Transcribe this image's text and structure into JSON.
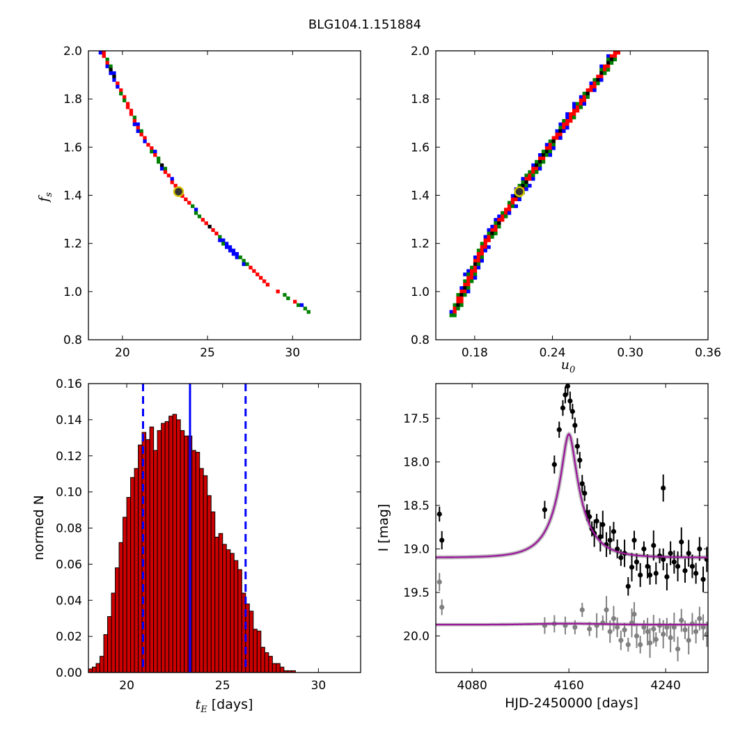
{
  "figure_title": "BLG104.1.151884",
  "chart_data": [
    {
      "type": "heatmap",
      "panel": "top-left",
      "xlabel": "",
      "ylabel_symbol": "f",
      "ylabel_sub": "s",
      "xlim": [
        18,
        34
      ],
      "ylim": [
        0.8,
        2.0
      ],
      "xticks": [
        20,
        25,
        30
      ],
      "xtick_labels": [
        "20",
        "25",
        "30"
      ],
      "yticks": [
        0.8,
        1.0,
        1.2,
        1.4,
        1.6,
        1.8,
        2.0
      ],
      "ytick_labels": [
        "0.8",
        "1.0",
        "1.2",
        "1.4",
        "1.6",
        "1.8",
        "2.0"
      ],
      "best_fit": {
        "x": 23.3,
        "y": 1.415
      },
      "ridge": [
        [
          18.8,
          2.0
        ],
        [
          21.0,
          1.67
        ],
        [
          23.3,
          1.415
        ],
        [
          26.0,
          1.2
        ],
        [
          28.5,
          1.03
        ],
        [
          30.3,
          0.95
        ],
        [
          31.3,
          0.9
        ]
      ],
      "levels": [
        {
          "name": "3sigma",
          "color": "#0000ff",
          "half_width": 0.11
        },
        {
          "name": "2sigma",
          "color": "#008000",
          "half_width": 0.078
        },
        {
          "name": "1sigma",
          "color": "#ff0000",
          "half_width": 0.05
        },
        {
          "name": "best",
          "color": "#000000",
          "half_width": 0.018
        }
      ]
    },
    {
      "type": "heatmap",
      "panel": "top-right",
      "xlabel_symbol": "u",
      "xlabel_sub": "0",
      "xlim": [
        0.15,
        0.36
      ],
      "ylim": [
        0.8,
        2.0
      ],
      "xticks": [
        0.18,
        0.24,
        0.3,
        0.36
      ],
      "xtick_labels": [
        "0.18",
        "0.24",
        "0.30",
        "0.36"
      ],
      "yticks": [
        0.8,
        1.0,
        1.2,
        1.4,
        1.6,
        1.8,
        2.0
      ],
      "ytick_labels": [
        "0.8",
        "1.0",
        "1.2",
        "1.4",
        "1.6",
        "1.8",
        "2.0"
      ],
      "best_fit": {
        "x": 0.2145,
        "y": 1.415
      },
      "ridge": [
        [
          0.162,
          0.89
        ],
        [
          0.188,
          1.2
        ],
        [
          0.2145,
          1.415
        ],
        [
          0.24,
          1.62
        ],
        [
          0.268,
          1.83
        ],
        [
          0.29,
          2.0
        ]
      ],
      "levels": [
        {
          "name": "3sigma",
          "color": "#0000ff",
          "half_width": 0.044
        },
        {
          "name": "2sigma",
          "color": "#008000",
          "half_width": 0.032
        },
        {
          "name": "1sigma",
          "color": "#ff0000",
          "half_width": 0.021
        },
        {
          "name": "best",
          "color": "#000000",
          "half_width": 0.008
        }
      ]
    },
    {
      "type": "bar",
      "panel": "bottom-left",
      "xlabel_symbol": "t",
      "xlabel_sub": "E",
      "xlabel_text": "[days]",
      "ylabel": "normed N",
      "xlim": [
        18,
        32.2
      ],
      "ylim": [
        0,
        0.16
      ],
      "xticks": [
        20,
        25,
        30
      ],
      "xtick_labels": [
        "20",
        "25",
        "30"
      ],
      "yticks": [
        0,
        0.02,
        0.04,
        0.06,
        0.08,
        0.1,
        0.12,
        0.14,
        0.16
      ],
      "ytick_labels": [
        "0.00",
        "0.02",
        "0.04",
        "0.06",
        "0.08",
        "0.10",
        "0.12",
        "0.14",
        "0.16"
      ],
      "bin_start": 18.0,
      "bin_width": 0.2,
      "values": [
        0.002,
        0.003,
        0.005,
        0.009,
        0.021,
        0.031,
        0.044,
        0.058,
        0.072,
        0.086,
        0.097,
        0.108,
        0.113,
        0.126,
        0.133,
        0.129,
        0.136,
        0.123,
        0.134,
        0.138,
        0.139,
        0.142,
        0.143,
        0.14,
        0.134,
        0.131,
        0.131,
        0.123,
        0.122,
        0.113,
        0.109,
        0.098,
        0.089,
        0.075,
        0.077,
        0.071,
        0.068,
        0.066,
        0.062,
        0.057,
        0.044,
        0.038,
        0.034,
        0.024,
        0.023,
        0.014,
        0.011,
        0.009,
        0.005,
        0.005,
        0.003,
        0.001,
        0.001,
        0.001,
        0.0,
        0.0,
        0.0,
        0.0,
        0.0,
        0.0,
        0.0,
        0.0,
        0.0,
        0.0,
        0.0,
        0.0,
        0.0,
        0.0,
        0.0,
        0.0,
        0.0
      ],
      "bar_color": "#cc0000",
      "median_line": 23.3,
      "bound_lines": [
        20.85,
        26.2
      ],
      "line_color": "#0000ff"
    },
    {
      "type": "scatter",
      "panel": "bottom-right",
      "xlabel": "HJD-2450000 [days]",
      "ylabel": "I [mag]",
      "xlim": [
        4050,
        4275
      ],
      "ylim": [
        20.42,
        17.1
      ],
      "xticks": [
        4080,
        4160,
        4240
      ],
      "xtick_labels": [
        "4080",
        "4160",
        "4240"
      ],
      "yticks": [
        17.5,
        18.0,
        18.5,
        19.0,
        19.5,
        20.0
      ],
      "ytick_labels": [
        "17.5",
        "18.0",
        "18.5",
        "19.0",
        "19.5",
        "20.0"
      ],
      "model": {
        "t0": 4160.0,
        "tE": 23.3,
        "u0": 0.2145,
        "baseline": 19.1,
        "blend_fraction": 0.72,
        "residual_baseline": 19.87,
        "color": "#9a1a9a"
      },
      "data_color": "#000000",
      "residual_color": "#808080",
      "data_points": [
        [
          4053,
          18.6
        ],
        [
          4055,
          18.9
        ],
        [
          4140,
          18.55
        ],
        [
          4148,
          18.03
        ],
        [
          4152,
          17.63
        ],
        [
          4155,
          17.38
        ],
        [
          4157,
          17.23
        ],
        [
          4159,
          17.13
        ],
        [
          4161,
          17.3
        ],
        [
          4163,
          17.42
        ],
        [
          4165,
          17.58
        ],
        [
          4167,
          17.82
        ],
        [
          4169,
          17.98
        ],
        [
          4171,
          18.25
        ],
        [
          4173,
          18.36
        ],
        [
          4175,
          18.58
        ],
        [
          4177,
          18.63
        ],
        [
          4179,
          18.77
        ],
        [
          4181,
          18.82
        ],
        [
          4183,
          18.68
        ],
        [
          4186,
          18.86
        ],
        [
          4188,
          18.72
        ],
        [
          4191,
          18.95
        ],
        [
          4194,
          18.9
        ],
        [
          4197,
          18.8
        ],
        [
          4200,
          19.0
        ],
        [
          4203,
          19.1
        ],
        [
          4206,
          19.05
        ],
        [
          4209,
          19.43
        ],
        [
          4212,
          19.21
        ],
        [
          4214,
          18.9
        ],
        [
          4216,
          19.15
        ],
        [
          4219,
          19.3
        ],
        [
          4222,
          19.0
        ],
        [
          4225,
          19.2
        ],
        [
          4227,
          19.3
        ],
        [
          4230,
          18.96
        ],
        [
          4232,
          19.28
        ],
        [
          4235,
          19.08
        ],
        [
          4238,
          19.12
        ],
        [
          4238,
          18.3
        ],
        [
          4241,
          19.32
        ],
        [
          4244,
          19.05
        ],
        [
          4247,
          19.15
        ],
        [
          4250,
          19.2
        ],
        [
          4253,
          18.92
        ],
        [
          4256,
          19.25
        ],
        [
          4259,
          19.05
        ],
        [
          4262,
          19.2
        ],
        [
          4265,
          19.28
        ],
        [
          4268,
          19.0
        ],
        [
          4271,
          19.35
        ],
        [
          4274,
          19.12
        ]
      ],
      "residual_points": [
        [
          4053,
          19.38
        ],
        [
          4055,
          19.67
        ],
        [
          4140,
          19.88
        ],
        [
          4148,
          19.86
        ],
        [
          4157,
          19.88
        ],
        [
          4165,
          19.9
        ],
        [
          4171,
          19.7
        ],
        [
          4177,
          19.92
        ],
        [
          4183,
          19.88
        ],
        [
          4188,
          19.85
        ],
        [
          4191,
          19.7
        ],
        [
          4194,
          19.95
        ],
        [
          4197,
          19.8
        ],
        [
          4200,
          19.9
        ],
        [
          4203,
          20.05
        ],
        [
          4206,
          19.93
        ],
        [
          4209,
          20.1
        ],
        [
          4212,
          19.85
        ],
        [
          4214,
          19.75
        ],
        [
          4216,
          20.0
        ],
        [
          4219,
          20.1
        ],
        [
          4222,
          19.9
        ],
        [
          4225,
          19.95
        ],
        [
          4227,
          20.08
        ],
        [
          4230,
          19.92
        ],
        [
          4232,
          20.04
        ],
        [
          4235,
          19.88
        ],
        [
          4238,
          19.98
        ],
        [
          4241,
          19.9
        ],
        [
          4244,
          20.02
        ],
        [
          4247,
          19.9
        ],
        [
          4250,
          20.15
        ],
        [
          4253,
          19.82
        ],
        [
          4256,
          19.93
        ],
        [
          4259,
          20.05
        ],
        [
          4262,
          19.86
        ],
        [
          4265,
          19.95
        ],
        [
          4268,
          19.8
        ],
        [
          4271,
          19.9
        ],
        [
          4274,
          19.98
        ]
      ]
    }
  ]
}
